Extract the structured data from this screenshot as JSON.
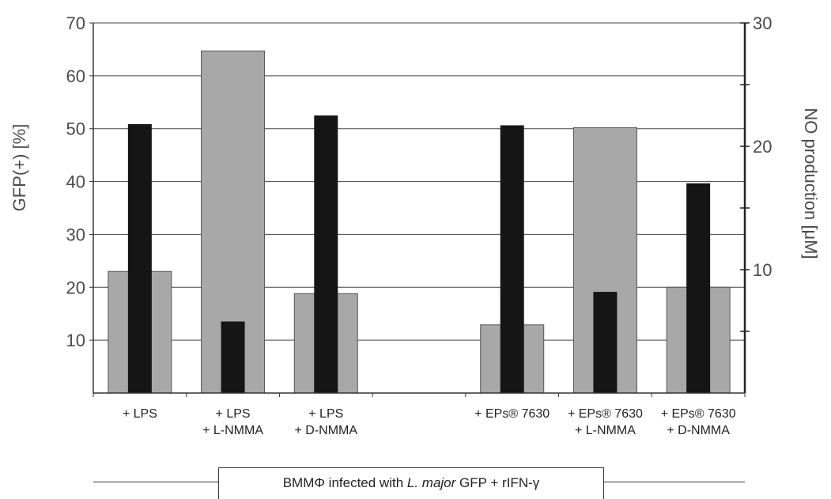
{
  "chart_data": {
    "type": "bar",
    "categories": [
      [
        "+ LPS",
        ""
      ],
      [
        "+ LPS",
        "+ L-NMMA"
      ],
      [
        "+ LPS",
        "+ D-NMMA"
      ],
      [
        "",
        ""
      ],
      [
        "+ EPs® 7630",
        ""
      ],
      [
        "+ EPs® 7630",
        "+ L-NMMA"
      ],
      [
        "+ EPs® 7630",
        "+ D-NMMA"
      ]
    ],
    "series": [
      {
        "axis": "left",
        "color": "#a8a8a8",
        "values": [
          23,
          64.7,
          18.8,
          null,
          12.9,
          50.2,
          20
        ]
      },
      {
        "axis": "right",
        "color": "#151515",
        "values": [
          21.8,
          5.8,
          22.5,
          null,
          21.7,
          8.2,
          17
        ]
      }
    ],
    "ylabel": "GFP(+) [%]",
    "ylabel_right": "NO production [μM]",
    "ylim": [
      0,
      70
    ],
    "ylim_right": [
      0,
      30
    ],
    "yticks": [
      10,
      20,
      30,
      40,
      50,
      60,
      70
    ],
    "yticks_right": [
      10,
      20,
      30
    ],
    "grid": true,
    "caption": {
      "prefix": "BMMΦ infected with ",
      "italic": "L. major",
      "suffix": " GFP + rIFN-γ"
    }
  }
}
